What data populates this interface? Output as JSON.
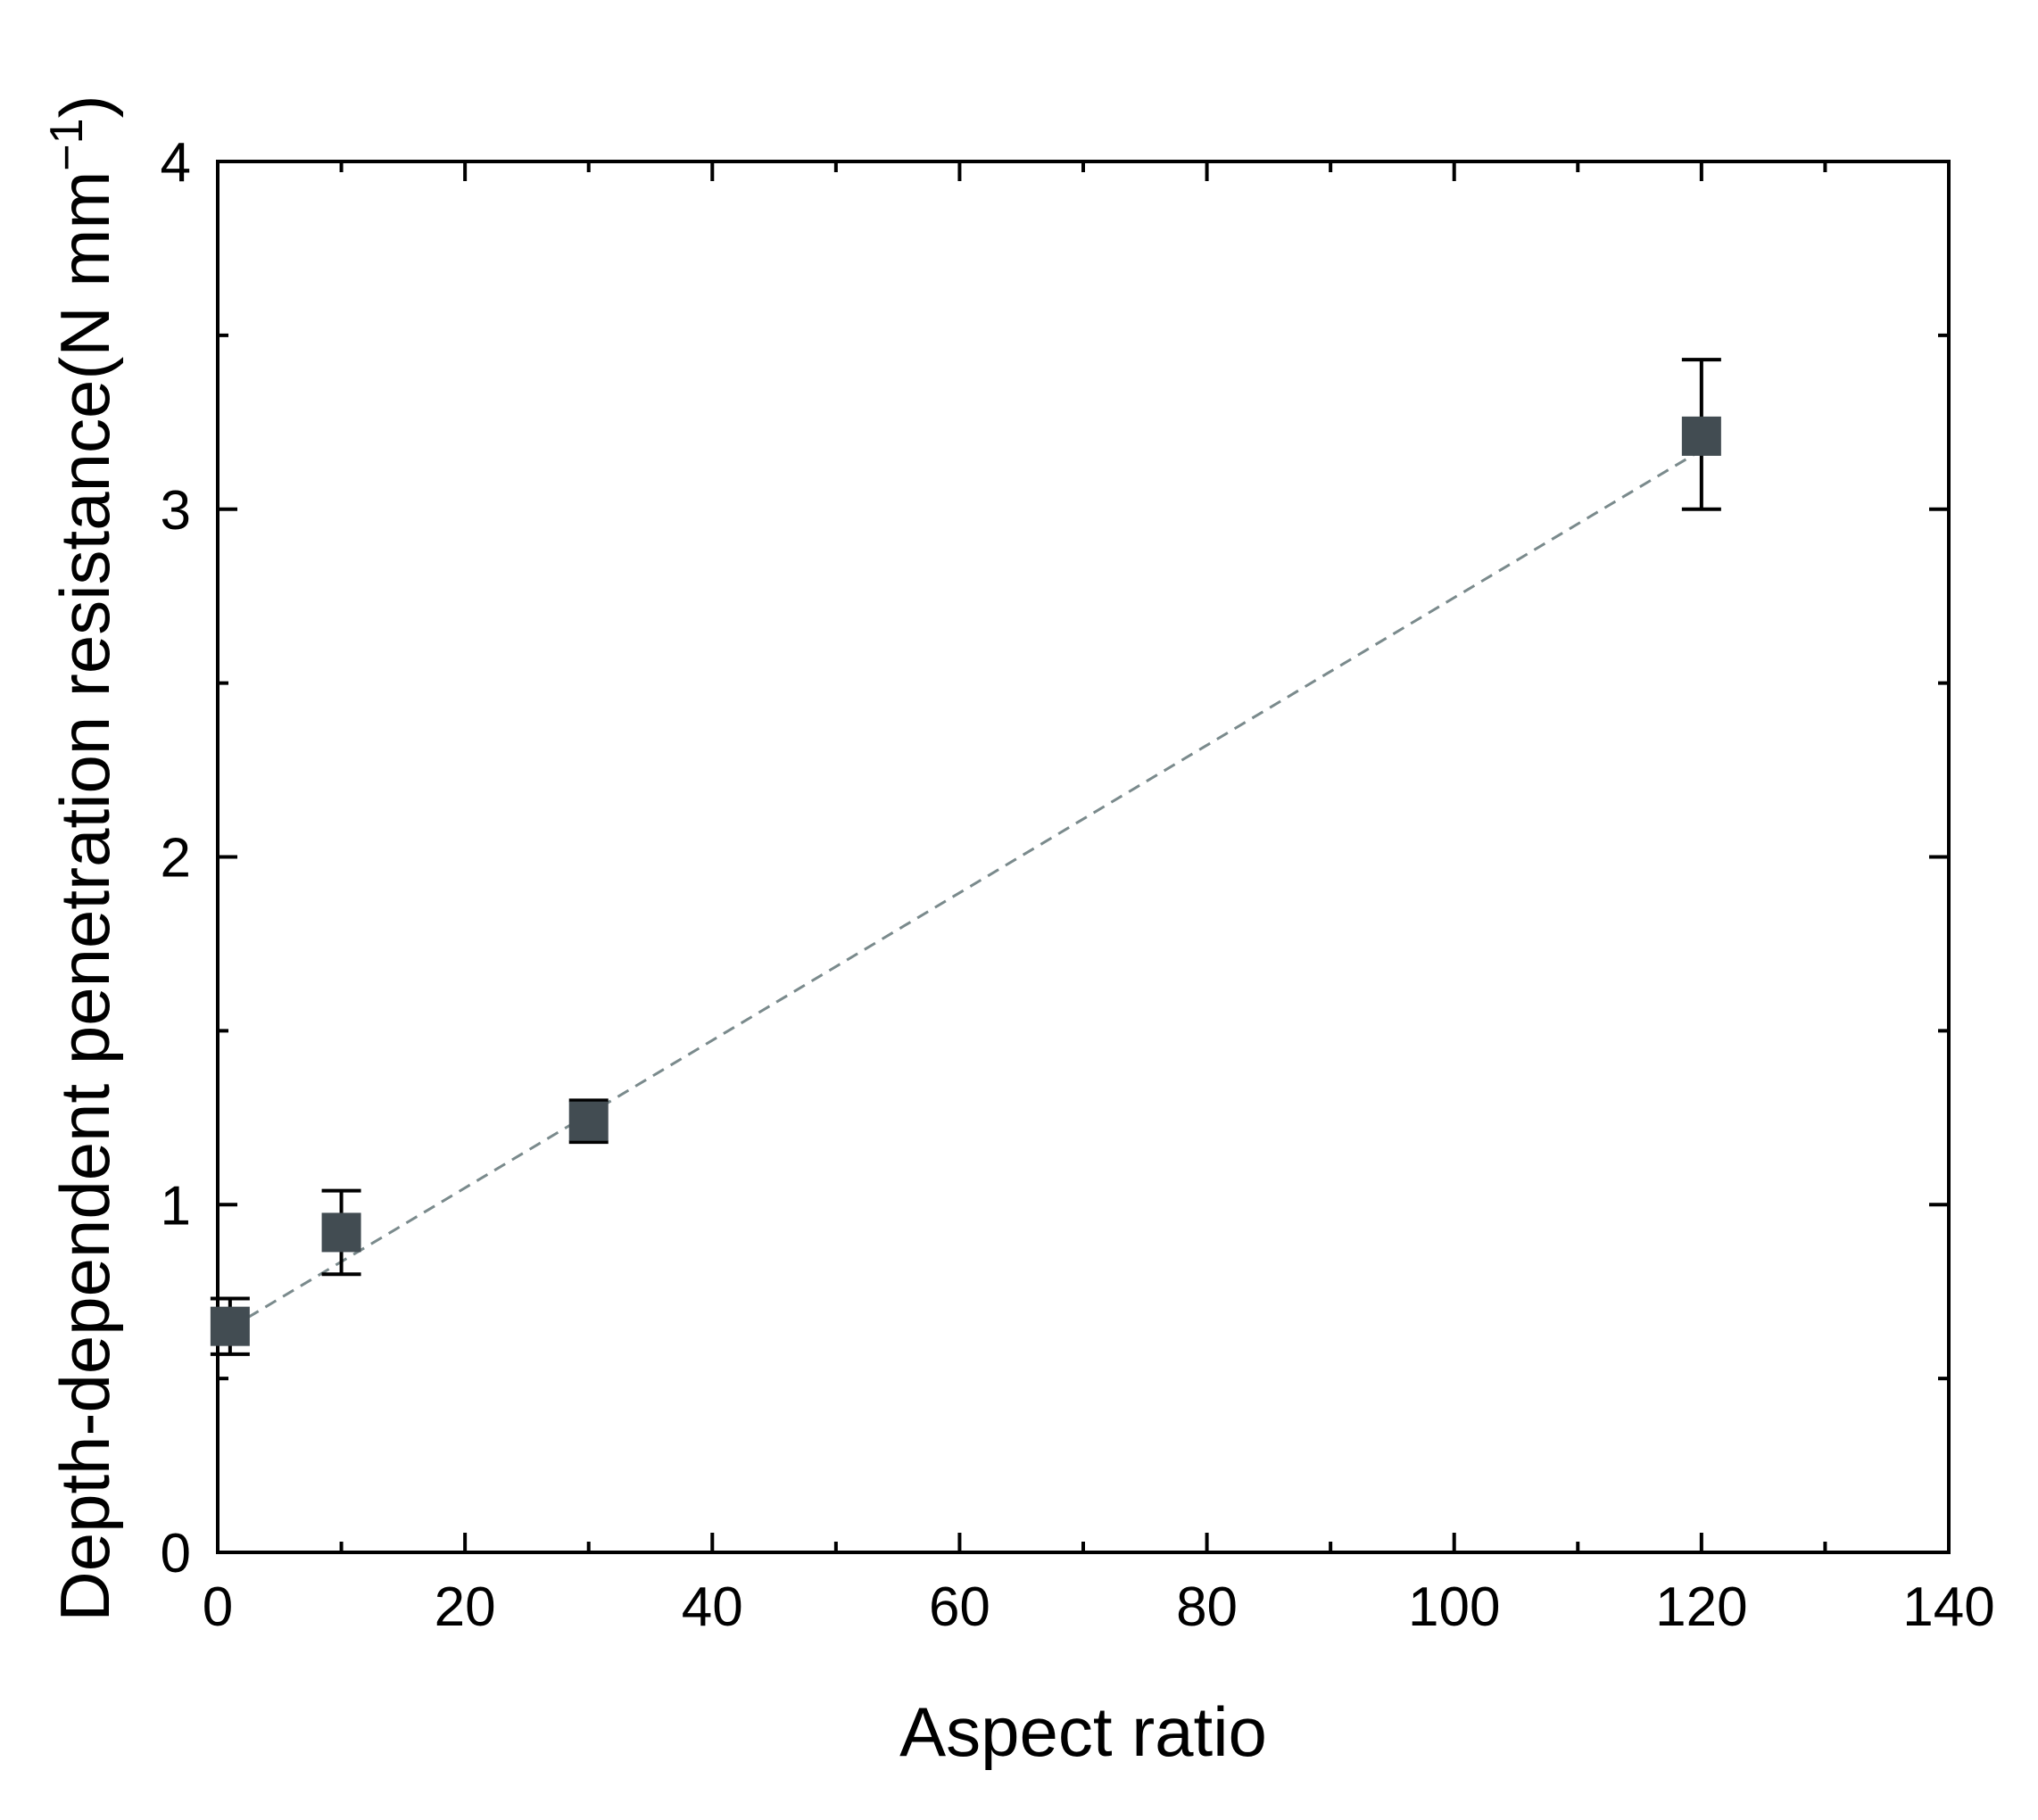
{
  "chart_data": {
    "type": "scatter",
    "xlabel": "Aspect ratio",
    "ylabel": {
      "text": "Depth-dependent penetration resistance",
      "unit_open": "(N mm",
      "unit_superscript": "−1",
      "unit_close": ")"
    },
    "xlim": [
      0,
      140
    ],
    "ylim": [
      0,
      4
    ],
    "x_ticks": [
      0,
      20,
      40,
      60,
      80,
      100,
      120,
      140
    ],
    "x_minor_ticks": [
      10,
      30,
      50,
      70,
      90,
      110,
      130
    ],
    "y_ticks": [
      0,
      1,
      2,
      3,
      4
    ],
    "y_minor_ticks": [
      0.5,
      1.5,
      2.5,
      3.5
    ],
    "x_tick_labels": [
      "0",
      "20",
      "40",
      "60",
      "80",
      "100",
      "120",
      "140"
    ],
    "y_tick_labels": [
      "0",
      "1",
      "2",
      "3",
      "4"
    ],
    "grid": false,
    "legend": "none",
    "series": [
      {
        "points": [
          {
            "x": 1,
            "y": 0.65,
            "err_low": 0.57,
            "err_high": 0.73
          },
          {
            "x": 10,
            "y": 0.92,
            "err_low": 0.8,
            "err_high": 1.04
          },
          {
            "x": 30,
            "y": 1.24,
            "err_low": 1.18,
            "err_high": 1.3
          },
          {
            "x": 120,
            "y": 3.21,
            "err_low": 3.0,
            "err_high": 3.43
          }
        ],
        "marker": "square",
        "marker_color": "#424c52",
        "errorbar_color": "#000000"
      }
    ],
    "fit_line": {
      "style": "dashed",
      "color": "#7a8a8c",
      "x": [
        1,
        120
      ],
      "y": [
        0.645,
        3.17
      ]
    }
  }
}
